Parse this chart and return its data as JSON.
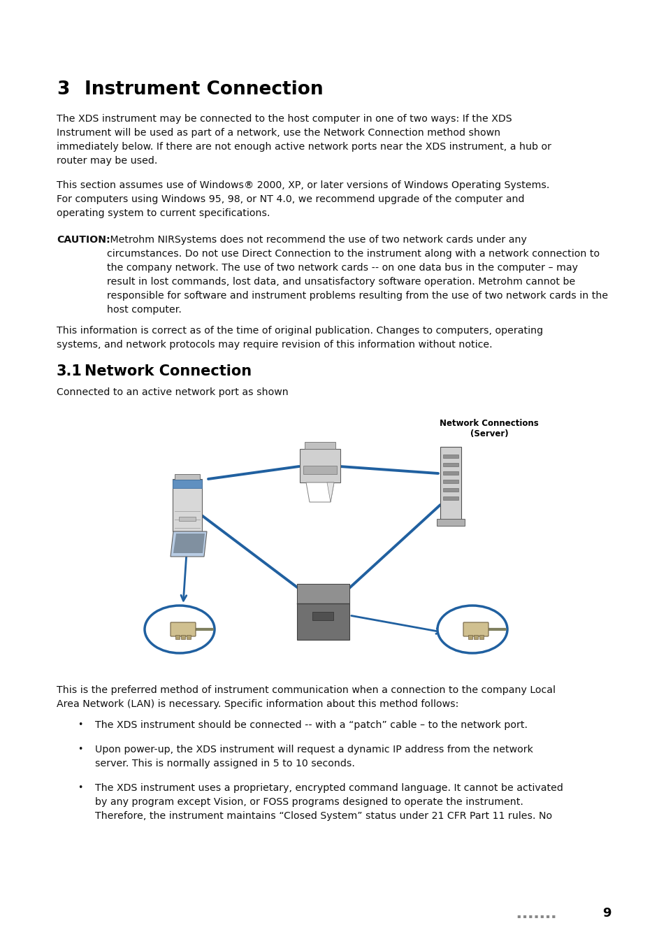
{
  "bg_color": "#ffffff",
  "lm": 0.085,
  "rm": 0.945,
  "body_fontsize": 10.2,
  "body_color": "#111111",
  "section_heading": "3   Instrument Connection",
  "section_fontsize": 19,
  "para1": "The XDS instrument may be connected to the host computer in one of two ways: If the XDS\nInstrument will be used as part of a network, use the Network Connection method shown\nimmediately below. If there are not enough active network ports near the XDS instrument, a hub or\nrouter may be used.",
  "para2": "This section assumes use of Windows® 2000, XP, or later versions of Windows Operating Systems.\nFor computers using Windows 95, 98, or NT 4.0, we recommend upgrade of the computer and\noperating system to current specifications.",
  "caution_bold": "CAUTION:",
  "caution_rest": " Metrohm NIRSystems does not recommend the use of two network cards under any\ncircumstances. Do not use Direct Connection to the instrument along with a network connection to\nthe company network. The use of two network cards -- on one data bus in the computer – may\nresult in lost commands, lost data, and unsatisfactory software operation. Metrohm cannot be\nresponsible for software and instrument problems resulting from the use of two network cards in the\nhost computer.",
  "para4": "This information is correct as of the time of original publication. Changes to computers, operating\nsystems, and network protocols may require revision of this information without notice.",
  "sub_heading": "3.1   Network Connection",
  "sub_fontsize": 15,
  "intro": "Connected to an active network port as shown",
  "diagram_label": "Network Connections\n(Server)",
  "para5": "This is the preferred method of instrument communication when a connection to the company Local\nArea Network (LAN) is necessary. Specific information about this method follows:",
  "bullet1": "The XDS instrument should be connected -- with a “patch” cable – to the network port.",
  "bullet2": "Upon power-up, the XDS instrument will request a dynamic IP address from the network\nserver. This is normally assigned in 5 to 10 seconds.",
  "bullet3": "The XDS instrument uses a proprietary, encrypted command language. It cannot be activated\nby any program except Vision, or FOSS programs designed to operate the instrument.\nTherefore, the instrument maintains “Closed System” status under 21 CFR Part 11 rules. No",
  "page_num": "9",
  "blue": "#2060a0",
  "blue_light": "#3070b8"
}
